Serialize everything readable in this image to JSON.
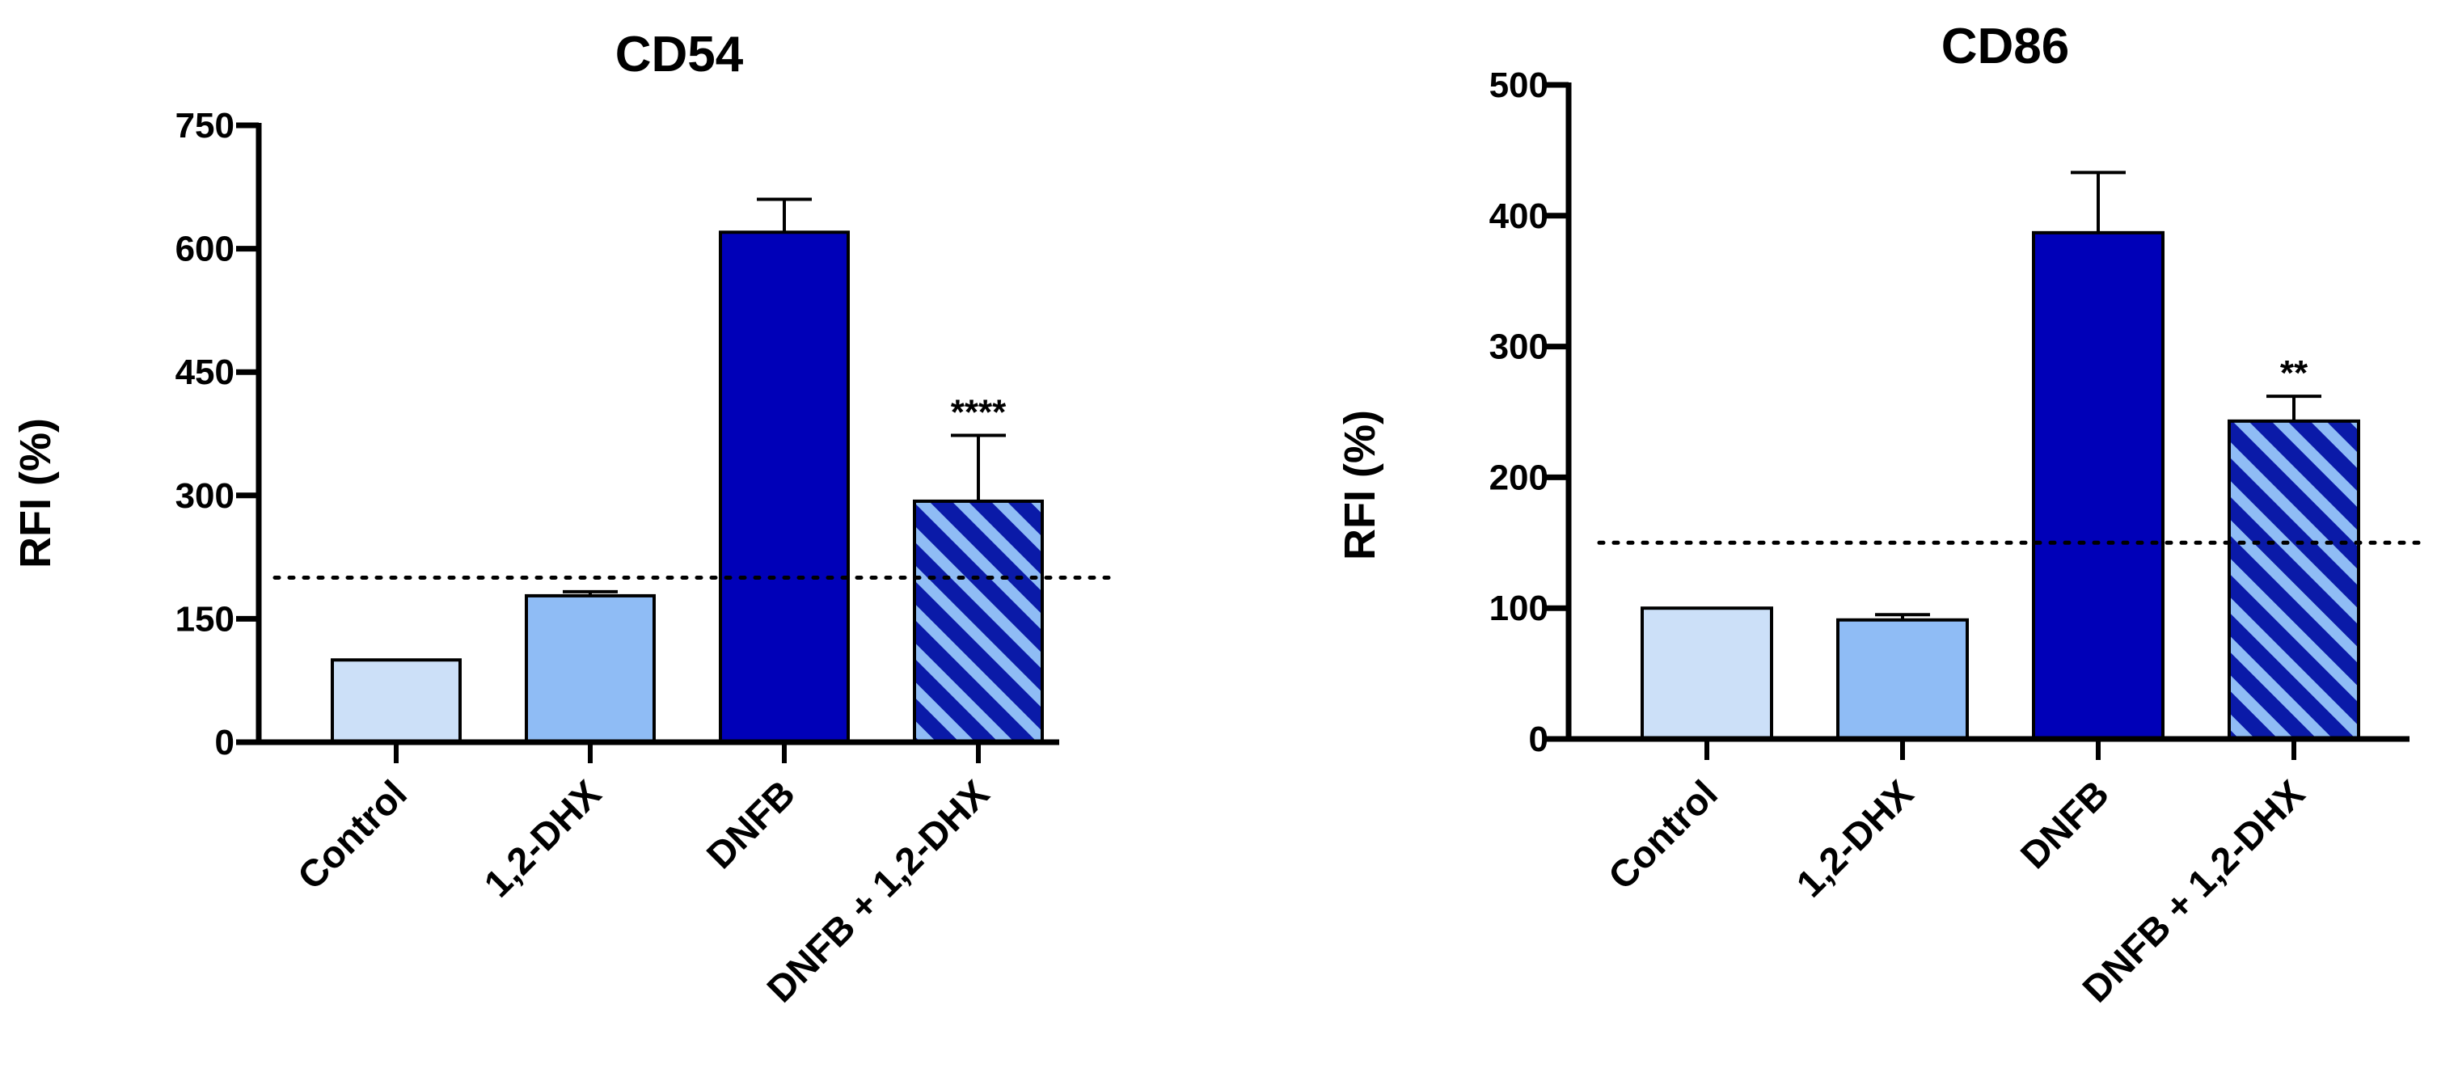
{
  "chart_data": [
    {
      "type": "bar",
      "title": "CD54",
      "ylabel": "RFI (%)",
      "xlabel": "",
      "ylim": [
        0,
        750
      ],
      "yticks": [
        0,
        150,
        300,
        450,
        600,
        750
      ],
      "categories": [
        "Control",
        "1,2-DHX",
        "DNFB",
        "DNFB + 1,2-DHX"
      ],
      "values": [
        100,
        178,
        620,
        293
      ],
      "errors": [
        0,
        5,
        40,
        80
      ],
      "annotations": [
        "",
        "",
        "",
        "****"
      ],
      "threshold": 200,
      "bar_fills": [
        "#cce0f8",
        "#8fbcf5",
        "#0000b8",
        "hatch"
      ],
      "hatch_colors": [
        "#0a1aa8",
        "#8fbcf5"
      ],
      "grid": false,
      "legend": "none"
    },
    {
      "type": "bar",
      "title": "CD86",
      "ylabel": "RFI (%)",
      "xlabel": "",
      "ylim": [
        0,
        500
      ],
      "yticks": [
        0,
        100,
        200,
        300,
        400,
        500
      ],
      "categories": [
        "Control",
        "1,2-DHX",
        "DNFB",
        "DNFB + 1,2-DHX"
      ],
      "values": [
        100,
        91,
        387,
        243
      ],
      "errors": [
        0,
        4,
        46,
        19
      ],
      "annotations": [
        "",
        "",
        "",
        "**"
      ],
      "threshold": 150,
      "bar_fills": [
        "#cce0f8",
        "#8fbcf5",
        "#0000b8",
        "hatch"
      ],
      "hatch_colors": [
        "#0a1aa8",
        "#8fbcf5"
      ],
      "grid": false,
      "legend": "none"
    }
  ]
}
